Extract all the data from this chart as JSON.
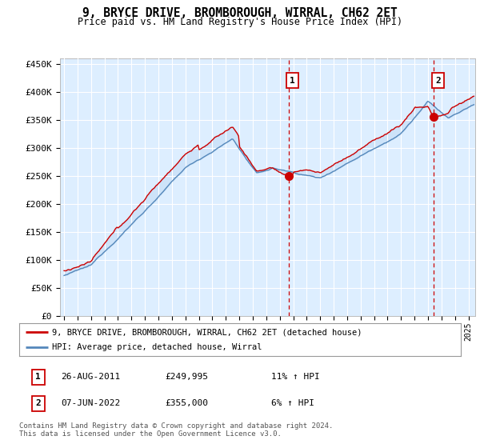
{
  "title": "9, BRYCE DRIVE, BROMBOROUGH, WIRRAL, CH62 2ET",
  "subtitle": "Price paid vs. HM Land Registry's House Price Index (HPI)",
  "ylabel_ticks": [
    "£0",
    "£50K",
    "£100K",
    "£150K",
    "£200K",
    "£250K",
    "£300K",
    "£350K",
    "£400K",
    "£450K"
  ],
  "ytick_values": [
    0,
    50000,
    100000,
    150000,
    200000,
    250000,
    300000,
    350000,
    400000,
    450000
  ],
  "ylim": [
    0,
    460000
  ],
  "xlim_start": 1994.7,
  "xlim_end": 2025.5,
  "background_color": "#ddeeff",
  "fig_bg_color": "#ffffff",
  "red_line_color": "#cc0000",
  "blue_line_color": "#5588bb",
  "fill_color": "#aaccee",
  "vline_color": "#cc0000",
  "marker1_x": 2011.65,
  "marker1_y": 249995,
  "marker2_x": 2022.43,
  "marker2_y": 355000,
  "legend_label1": "9, BRYCE DRIVE, BROMBOROUGH, WIRRAL, CH62 2ET (detached house)",
  "legend_label2": "HPI: Average price, detached house, Wirral",
  "table_row1": [
    "1",
    "26-AUG-2011",
    "£249,995",
    "11% ↑ HPI"
  ],
  "table_row2": [
    "2",
    "07-JUN-2022",
    "£355,000",
    "6% ↑ HPI"
  ],
  "footer": "Contains HM Land Registry data © Crown copyright and database right 2024.\nThis data is licensed under the Open Government Licence v3.0.",
  "xtick_years": [
    1995,
    1996,
    1997,
    1998,
    1999,
    2000,
    2001,
    2002,
    2003,
    2004,
    2005,
    2006,
    2007,
    2008,
    2009,
    2010,
    2011,
    2012,
    2013,
    2014,
    2015,
    2016,
    2017,
    2018,
    2019,
    2020,
    2021,
    2022,
    2023,
    2024,
    2025
  ]
}
